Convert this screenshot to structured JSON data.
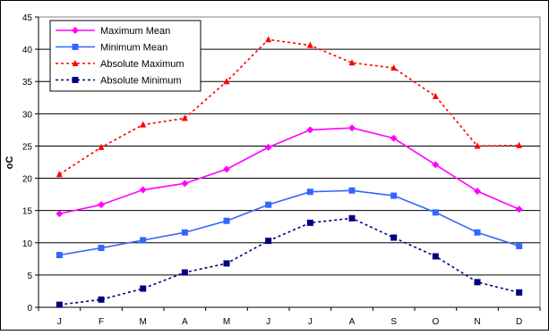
{
  "chart_data": {
    "type": "line",
    "title": "",
    "xlabel": "",
    "ylabel": "oC",
    "ylim": [
      0,
      45
    ],
    "ytick_step": 5,
    "yticks": [
      "0",
      "5",
      "10",
      "15",
      "20",
      "25",
      "30",
      "35",
      "40",
      "45"
    ],
    "grid": true,
    "legend_position": "top-left",
    "categories": [
      "J",
      "F",
      "M",
      "A",
      "M",
      "J",
      "J",
      "A",
      "S",
      "O",
      "N",
      "D"
    ],
    "series": [
      {
        "name": "Maximum Mean",
        "color": "#ff00ff",
        "line_style": "solid",
        "marker": "diamond",
        "values": [
          14.5,
          15.9,
          18.2,
          19.2,
          21.4,
          24.8,
          27.5,
          27.8,
          26.2,
          22.1,
          18.0,
          15.2
        ]
      },
      {
        "name": "Minimum Mean",
        "color": "#3366ff",
        "line_style": "solid",
        "marker": "square",
        "values": [
          8.1,
          9.2,
          10.4,
          11.6,
          13.4,
          15.9,
          17.9,
          18.1,
          17.3,
          14.7,
          11.6,
          9.5
        ]
      },
      {
        "name": "Absolute Maximum",
        "color": "#ff0000",
        "line_style": "dashed",
        "marker": "triangle",
        "values": [
          20.6,
          24.8,
          28.3,
          29.3,
          35.0,
          41.5,
          40.6,
          37.9,
          37.1,
          32.7,
          25.0,
          25.1
        ]
      },
      {
        "name": "Absolute Minimum",
        "color": "#000080",
        "line_style": "dashed",
        "marker": "square",
        "values": [
          0.4,
          1.2,
          2.9,
          5.4,
          6.8,
          10.3,
          13.1,
          13.8,
          10.8,
          7.9,
          3.9,
          2.3
        ]
      }
    ]
  }
}
